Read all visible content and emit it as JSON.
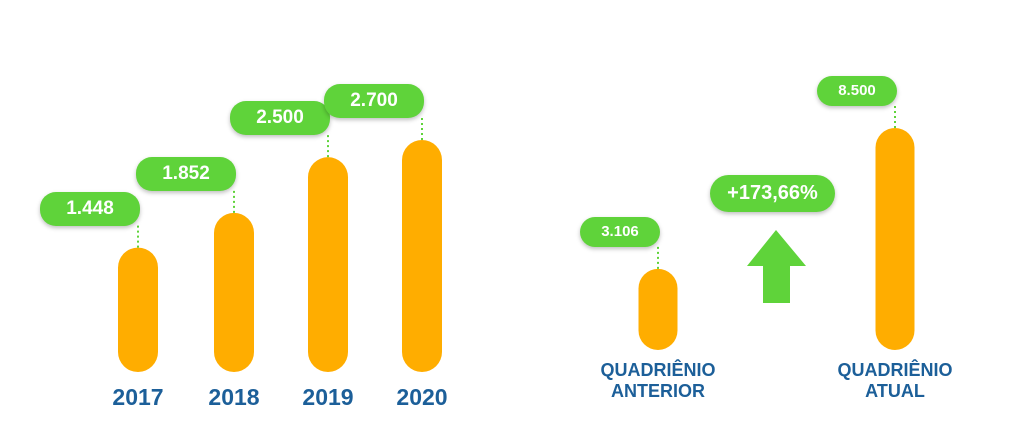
{
  "chart_data": [
    {
      "type": "bar",
      "categories": [
        "2017",
        "2018",
        "2019",
        "2020"
      ],
      "values": [
        1448,
        1852,
        2500,
        2700
      ],
      "value_labels": [
        "1.448",
        "1.852",
        "2.500",
        "2.700"
      ],
      "color": "#ffad00",
      "label_color": "#5fd33a"
    },
    {
      "type": "bar",
      "categories": [
        "QUADRIÊNIO ANTERIOR",
        "QUADRIÊNIO ATUAL"
      ],
      "values": [
        3106,
        8500
      ],
      "value_labels": [
        "3.106",
        "8.500"
      ],
      "annotation": "+173,66%",
      "color": "#ffad00",
      "label_color": "#5fd33a"
    }
  ]
}
